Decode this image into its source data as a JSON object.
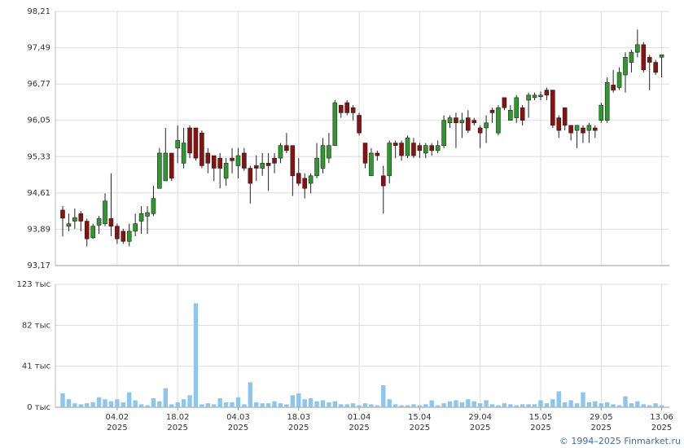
{
  "credit": "© 1994–2025 Finmarket.ru",
  "chart_data": [
    {
      "type": "candlestick",
      "up_color": "#2e9a2e",
      "down_color": "#8b1010",
      "grid": true,
      "categories": [
        null,
        null,
        null,
        null,
        null,
        null,
        null,
        null,
        null,
        null,
        null,
        null,
        null,
        null,
        null,
        null,
        null,
        null,
        null,
        null,
        null,
        null,
        null,
        null,
        null,
        null,
        null,
        null,
        null,
        null,
        null,
        null,
        null,
        null,
        null,
        null,
        null,
        null,
        null,
        null,
        null,
        null,
        null,
        null,
        null,
        null,
        null,
        null,
        null,
        null,
        null,
        null,
        null,
        null,
        null,
        null,
        null,
        null,
        null,
        null,
        null,
        null,
        null,
        null,
        null,
        null,
        null,
        null,
        null,
        null,
        null,
        null,
        null,
        null,
        null,
        null,
        null,
        null,
        null,
        null,
        null,
        null,
        null,
        null,
        null,
        null,
        null,
        null,
        null,
        null,
        null,
        null,
        null,
        null,
        null,
        null,
        null,
        null,
        null,
        null
      ],
      "open": [
        94.27,
        93.95,
        94.05,
        94.2,
        94.05,
        93.72,
        93.97,
        94.0,
        94.1,
        93.95,
        93.85,
        93.65,
        93.85,
        94.05,
        94.15,
        94.2,
        94.7,
        94.85,
        95.4,
        95.5,
        95.2,
        95.9,
        95.9,
        95.8,
        95.4,
        95.35,
        95.3,
        94.9,
        95.3,
        95.15,
        95.4,
        95.1,
        95.15,
        95.1,
        95.2,
        95.3,
        95.3,
        95.55,
        95.55,
        95.0,
        94.9,
        94.8,
        94.95,
        95.1,
        95.3,
        95.55,
        96.35,
        96.4,
        96.3,
        96.15,
        95.6,
        94.95,
        95.4,
        94.95,
        94.95,
        95.6,
        95.6,
        95.35,
        95.6,
        95.55,
        95.4,
        95.55,
        95.45,
        95.55,
        96.0,
        96.1,
        96.0,
        96.1,
        96.05,
        95.9,
        95.9,
        96.25,
        95.8,
        96.5,
        96.05,
        96.1,
        96.3,
        96.45,
        96.5,
        96.52,
        96.65,
        96.65,
        96.1,
        96.3,
        95.95,
        95.85,
        95.9,
        95.85,
        95.9,
        96.05,
        96.05,
        96.75,
        96.7,
        96.95,
        97.2,
        97.4,
        97.55,
        97.3,
        97.2,
        97.3
      ],
      "high": [
        94.35,
        94.2,
        94.3,
        94.25,
        94.1,
        94.0,
        94.15,
        94.6,
        95.0,
        94.0,
        93.9,
        94.0,
        94.2,
        94.35,
        94.35,
        94.75,
        95.5,
        95.9,
        95.4,
        95.95,
        95.9,
        95.95,
        95.9,
        95.85,
        95.5,
        95.35,
        95.4,
        95.3,
        95.5,
        95.5,
        95.5,
        95.15,
        95.35,
        95.4,
        95.4,
        95.4,
        95.6,
        95.8,
        95.55,
        95.3,
        95.0,
        95.0,
        95.6,
        95.7,
        95.8,
        96.45,
        96.35,
        96.45,
        96.35,
        96.2,
        95.6,
        95.5,
        95.45,
        95.15,
        95.65,
        95.65,
        95.65,
        95.75,
        95.7,
        95.6,
        95.6,
        95.6,
        95.65,
        96.15,
        96.15,
        96.2,
        96.2,
        96.25,
        96.1,
        95.95,
        96.15,
        96.3,
        96.35,
        96.5,
        96.35,
        96.55,
        96.35,
        96.6,
        96.6,
        96.62,
        96.7,
        96.65,
        96.15,
        96.3,
        95.95,
        95.95,
        95.95,
        96.0,
        95.95,
        96.4,
        96.9,
        97.05,
        97.1,
        97.4,
        97.45,
        97.85,
        97.6,
        97.35,
        97.25,
        97.35
      ],
      "low": [
        93.75,
        93.85,
        93.9,
        93.85,
        93.55,
        93.7,
        93.8,
        93.95,
        93.75,
        93.6,
        93.6,
        93.55,
        93.75,
        93.8,
        93.8,
        94.15,
        94.7,
        94.85,
        94.85,
        95.2,
        95.1,
        95.3,
        95.25,
        95.1,
        95.0,
        94.85,
        94.7,
        94.75,
        95.0,
        94.9,
        95.05,
        94.4,
        94.85,
        94.95,
        94.65,
        95.0,
        95.2,
        95.4,
        94.55,
        94.75,
        94.5,
        94.6,
        94.9,
        95.0,
        95.2,
        95.55,
        96.1,
        96.15,
        96.05,
        95.75,
        95.1,
        94.95,
        95.25,
        94.2,
        94.8,
        95.3,
        95.25,
        95.3,
        95.3,
        95.3,
        95.3,
        95.35,
        95.4,
        95.5,
        95.9,
        95.5,
        95.7,
        95.8,
        95.95,
        95.5,
        95.6,
        96.0,
        95.75,
        96.25,
        96.05,
        96.0,
        95.95,
        96.1,
        96.45,
        96.45,
        96.45,
        95.9,
        95.7,
        95.85,
        95.65,
        95.5,
        95.6,
        95.6,
        95.7,
        96.0,
        96.0,
        96.6,
        96.65,
        96.6,
        97.0,
        97.3,
        97.0,
        96.65,
        96.95,
        96.9
      ],
      "close": [
        94.11,
        94.0,
        94.12,
        94.05,
        93.7,
        93.95,
        94.1,
        94.45,
        93.95,
        93.7,
        93.65,
        93.85,
        94.0,
        94.2,
        94.22,
        94.5,
        95.4,
        95.4,
        94.9,
        95.65,
        95.6,
        95.4,
        95.3,
        95.15,
        95.2,
        95.1,
        95.1,
        95.2,
        95.25,
        95.35,
        95.1,
        94.8,
        95.1,
        95.2,
        95.15,
        95.2,
        95.55,
        95.45,
        94.95,
        94.8,
        94.7,
        94.95,
        95.3,
        95.55,
        95.55,
        96.4,
        96.2,
        96.2,
        96.2,
        95.8,
        95.2,
        95.4,
        95.35,
        94.75,
        95.6,
        95.55,
        95.35,
        95.7,
        95.35,
        95.45,
        95.55,
        95.45,
        95.55,
        96.05,
        96.1,
        96.0,
        96.05,
        95.85,
        96.0,
        95.8,
        96.0,
        96.2,
        96.3,
        96.3,
        96.25,
        96.5,
        96.05,
        96.55,
        96.55,
        96.55,
        96.55,
        95.95,
        95.85,
        95.95,
        95.8,
        95.95,
        95.8,
        95.95,
        95.85,
        96.35,
        96.8,
        96.65,
        97.0,
        97.3,
        97.4,
        97.55,
        97.05,
        97.2,
        97.0,
        97.35
      ],
      "ylim": [
        93.17,
        98.21
      ],
      "yticks": [
        {
          "value": 93.17,
          "label": "93,17"
        },
        {
          "value": 93.89,
          "label": "93,89"
        },
        {
          "value": 94.61,
          "label": "94,61"
        },
        {
          "value": 95.33,
          "label": "95,33"
        },
        {
          "value": 96.05,
          "label": "96,05"
        },
        {
          "value": 96.77,
          "label": "96,77"
        },
        {
          "value": 97.49,
          "label": "97,49"
        },
        {
          "value": 98.21,
          "label": "98,21"
        }
      ]
    },
    {
      "type": "bar",
      "color": "#8cc6ee",
      "grid": true,
      "categories": [
        null,
        null,
        null,
        null,
        null,
        null,
        null,
        null,
        null,
        "04.02 2025",
        null,
        null,
        null,
        null,
        null,
        null,
        null,
        null,
        null,
        "18.02 2025",
        null,
        null,
        null,
        null,
        null,
        null,
        null,
        null,
        null,
        "04.03 2025",
        null,
        null,
        null,
        null,
        null,
        null,
        null,
        null,
        null,
        "18.03 2025",
        null,
        null,
        null,
        null,
        null,
        null,
        null,
        null,
        null,
        "01.04 2025",
        null,
        null,
        null,
        null,
        null,
        null,
        null,
        null,
        null,
        "15.04 2025",
        null,
        null,
        null,
        null,
        null,
        null,
        null,
        null,
        null,
        "29.04 2025",
        null,
        null,
        null,
        null,
        null,
        null,
        null,
        null,
        null,
        "15.05 2025",
        null,
        null,
        null,
        null,
        null,
        null,
        null,
        null,
        null,
        "29.05 2025",
        null,
        null,
        null,
        null,
        null,
        null,
        null,
        null,
        null,
        "13.06 2025"
      ],
      "values": [
        14,
        8,
        4,
        3,
        4,
        5,
        10,
        8,
        6,
        8,
        5,
        15,
        7,
        3,
        2,
        9,
        6,
        19,
        3,
        5,
        8,
        12,
        104,
        3,
        4,
        3,
        9,
        5,
        5,
        10,
        3,
        25,
        5,
        4,
        4,
        6,
        4,
        3,
        12,
        14,
        8,
        9,
        6,
        7,
        5,
        6,
        3,
        3,
        4,
        2,
        4,
        3,
        2,
        22,
        8,
        3,
        2,
        2,
        3,
        2,
        3,
        7,
        2,
        4,
        6,
        7,
        5,
        8,
        6,
        4,
        7,
        3,
        2,
        4,
        3,
        2,
        3,
        3,
        3,
        7,
        4,
        8,
        16,
        5,
        7,
        4,
        15,
        5,
        6,
        4,
        5,
        3,
        2,
        11,
        4,
        6,
        3,
        2,
        4,
        2
      ],
      "ylim": [
        0,
        123
      ],
      "yticks": [
        {
          "value": 0,
          "label": "0 тыс"
        },
        {
          "value": 41,
          "label": "41 тыс"
        },
        {
          "value": 82,
          "label": "82 тыс"
        },
        {
          "value": 123,
          "label": "123 тыс"
        }
      ]
    }
  ]
}
